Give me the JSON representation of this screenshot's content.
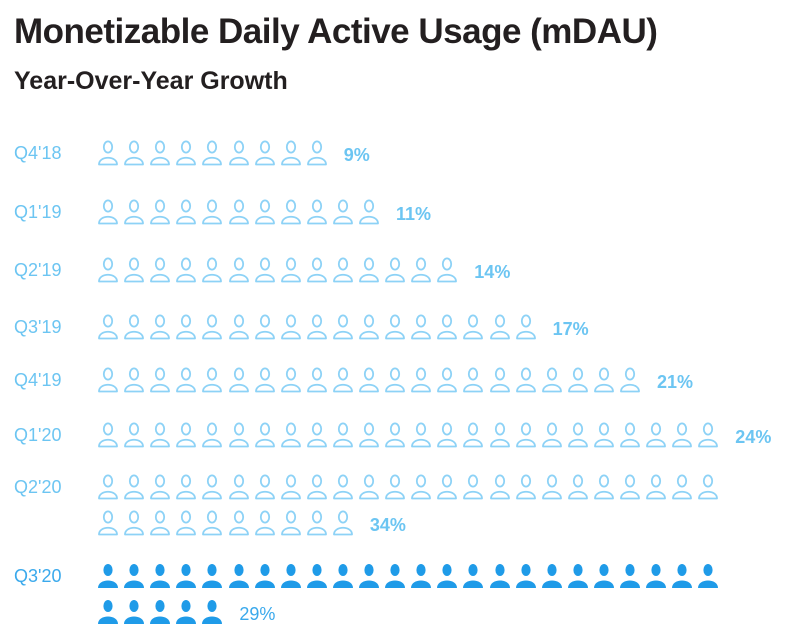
{
  "title": "Monetizable Daily Active Usage (mDAU)",
  "subtitle": "Year-Over-Year Growth",
  "colors": {
    "outline": "#8dd2f6",
    "filled": "#1f9be8",
    "label": "#6cc5f2"
  },
  "icon_semantic": "person-icon",
  "chart_data": {
    "type": "pictogram",
    "title": "Monetizable Daily Active Usage (mDAU)",
    "subtitle": "Year-Over-Year Growth",
    "unit": "1 icon = 1% YoY growth",
    "categories": [
      "Q4'18",
      "Q1'19",
      "Q2'19",
      "Q3'19",
      "Q4'19",
      "Q1'20",
      "Q2'20",
      "Q3'20"
    ],
    "values": [
      9,
      11,
      14,
      17,
      21,
      24,
      34,
      29
    ],
    "value_labels": [
      "9%",
      "11%",
      "14%",
      "17%",
      "21%",
      "24%",
      "34%",
      "29%"
    ],
    "highlighted": "Q3'20"
  }
}
